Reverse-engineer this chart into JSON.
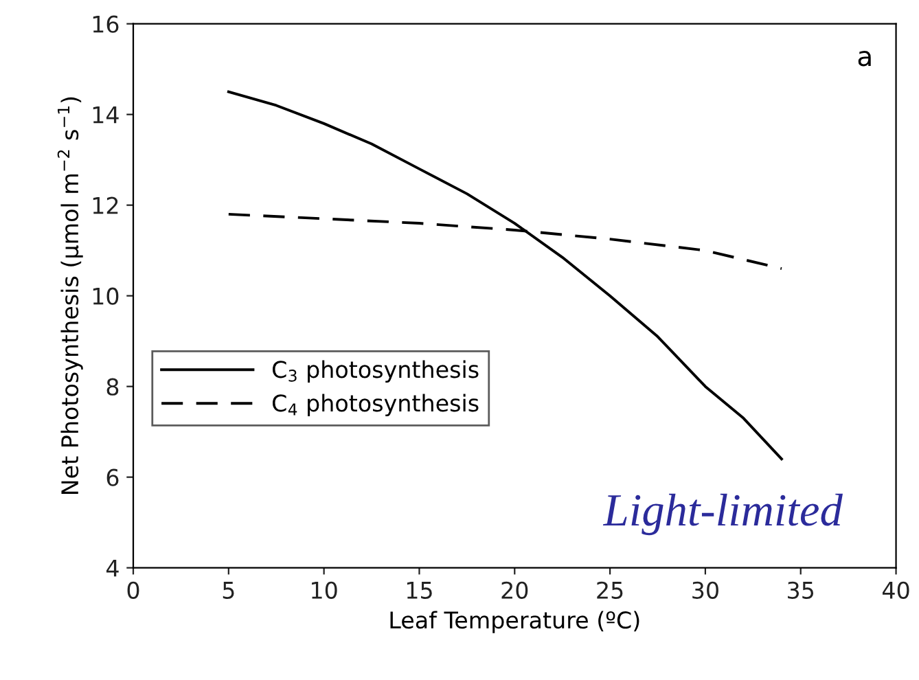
{
  "chart_data": {
    "type": "line",
    "xlabel": "Leaf Temperature (ºC)",
    "ylabel": "Net Photosynthesis (μmol m$^{−2}$ s$^{−1}$)",
    "annotations": [
      "a",
      "Light-limited"
    ],
    "xlim": [
      0,
      40
    ],
    "xticks": [
      0,
      5,
      10,
      15,
      20,
      25,
      30,
      35,
      40
    ],
    "ylim": [
      4,
      16
    ],
    "yticks": [
      4,
      6,
      8,
      10,
      12,
      14,
      16
    ],
    "grid": false,
    "legend": "left",
    "series": [
      {
        "name": "C$_{3}$ photosynthesis",
        "color": "#000000",
        "line_style": "solid",
        "x": [
          5,
          7.5,
          10,
          12.5,
          15,
          17.5,
          20,
          22.5,
          25,
          27.5,
          30,
          32,
          34
        ],
        "values": [
          14.5,
          14.2,
          13.8,
          13.35,
          12.8,
          12.25,
          11.6,
          10.85,
          10.0,
          9.1,
          8.0,
          7.3,
          6.4
        ]
      },
      {
        "name": "C$_{4}$ photosynthesis",
        "color": "#000000",
        "line_style": "dashed",
        "x": [
          5,
          10,
          15,
          20,
          25,
          30,
          34
        ],
        "values": [
          11.8,
          11.7,
          11.6,
          11.45,
          11.25,
          11.0,
          10.6
        ]
      }
    ]
  }
}
